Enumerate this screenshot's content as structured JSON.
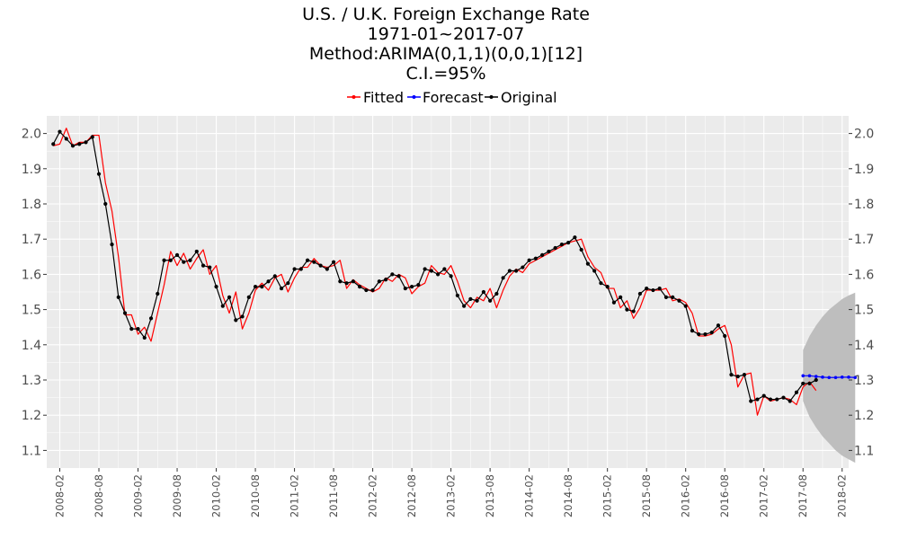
{
  "chart_data": {
    "type": "line",
    "title_lines": [
      "U.S. / U.K. Foreign Exchange Rate",
      "1971-01~2017-07",
      "Method:ARIMA(0,1,1)(0,0,1)[12]",
      "C.I.=95%"
    ],
    "legend": {
      "position": "top",
      "items": [
        {
          "label": "Fitted",
          "color": "#ff0000"
        },
        {
          "label": "Forecast",
          "color": "#0000ff"
        },
        {
          "label": "Original",
          "color": "#000000"
        }
      ]
    },
    "grid": true,
    "ylim": [
      1.05,
      2.05
    ],
    "yticks": [
      2.0,
      1.9,
      1.8,
      1.7,
      1.6,
      1.5,
      1.4,
      1.3,
      1.2,
      1.1
    ],
    "ytick_labels": [
      "2.0",
      "1.9",
      "1.8",
      "1.7",
      "1.6",
      "1.5",
      "1.4",
      "1.3",
      "1.2",
      "1.1"
    ],
    "xlim": [
      "2007-12",
      "2018-03"
    ],
    "xticks": [
      "2008-02",
      "2008-08",
      "2009-02",
      "2009-08",
      "2010-02",
      "2010-08",
      "2011-02",
      "2011-08",
      "2012-02",
      "2012-08",
      "2013-02",
      "2013-08",
      "2014-02",
      "2014-08",
      "2015-02",
      "2015-08",
      "2016-02",
      "2016-08",
      "2017-02",
      "2017-08",
      "2018-02"
    ],
    "original": {
      "start": "2008-01",
      "values": [
        1.97,
        2.005,
        1.985,
        1.965,
        1.97,
        1.975,
        1.99,
        1.885,
        1.8,
        1.685,
        1.535,
        1.49,
        1.445,
        1.445,
        1.42,
        1.475,
        1.545,
        1.64,
        1.64,
        1.655,
        1.635,
        1.64,
        1.665,
        1.625,
        1.62,
        1.565,
        1.51,
        1.535,
        1.47,
        1.48,
        1.535,
        1.565,
        1.565,
        1.58,
        1.595,
        1.56,
        1.575,
        1.615,
        1.615,
        1.64,
        1.635,
        1.625,
        1.615,
        1.635,
        1.58,
        1.575,
        1.58,
        1.565,
        1.555,
        1.555,
        1.58,
        1.585,
        1.6,
        1.595,
        1.56,
        1.565,
        1.57,
        1.615,
        1.61,
        1.6,
        1.615,
        1.595,
        1.54,
        1.51,
        1.53,
        1.525,
        1.55,
        1.525,
        1.545,
        1.59,
        1.61,
        1.61,
        1.62,
        1.64,
        1.645,
        1.655,
        1.665,
        1.675,
        1.685,
        1.69,
        1.705,
        1.67,
        1.63,
        1.61,
        1.575,
        1.565,
        1.52,
        1.535,
        1.5,
        1.495,
        1.545,
        1.56,
        1.555,
        1.56,
        1.535,
        1.535,
        1.525,
        1.51,
        1.44,
        1.43,
        1.43,
        1.435,
        1.455,
        1.425,
        1.315,
        1.31,
        1.315,
        1.24,
        1.245,
        1.255,
        1.245,
        1.245,
        1.25,
        1.24,
        1.265,
        1.29,
        1.29,
        1.3
      ]
    },
    "fitted": {
      "start": "2008-01",
      "values": [
        1.965,
        1.97,
        2.015,
        1.965,
        1.975,
        1.975,
        1.995,
        1.995,
        1.86,
        1.78,
        1.65,
        1.485,
        1.485,
        1.43,
        1.45,
        1.41,
        1.49,
        1.57,
        1.665,
        1.625,
        1.66,
        1.615,
        1.645,
        1.67,
        1.6,
        1.625,
        1.54,
        1.49,
        1.55,
        1.445,
        1.49,
        1.555,
        1.575,
        1.555,
        1.59,
        1.6,
        1.55,
        1.59,
        1.62,
        1.62,
        1.645,
        1.625,
        1.62,
        1.625,
        1.64,
        1.56,
        1.585,
        1.57,
        1.56,
        1.55,
        1.56,
        1.59,
        1.58,
        1.6,
        1.59,
        1.545,
        1.565,
        1.575,
        1.625,
        1.605,
        1.6,
        1.625,
        1.58,
        1.525,
        1.505,
        1.535,
        1.525,
        1.56,
        1.505,
        1.555,
        1.595,
        1.615,
        1.605,
        1.63,
        1.64,
        1.65,
        1.66,
        1.67,
        1.68,
        1.69,
        1.695,
        1.7,
        1.65,
        1.62,
        1.605,
        1.56,
        1.56,
        1.505,
        1.525,
        1.475,
        1.505,
        1.555,
        1.555,
        1.555,
        1.56,
        1.525,
        1.53,
        1.52,
        1.49,
        1.425,
        1.425,
        1.43,
        1.445,
        1.455,
        1.4,
        1.28,
        1.315,
        1.32,
        1.2,
        1.255,
        1.24,
        1.245,
        1.25,
        1.245,
        1.23,
        1.28,
        1.295,
        1.27
      ]
    },
    "forecast": {
      "start": "2017-08",
      "values": [
        1.312,
        1.312,
        1.31,
        1.308,
        1.307,
        1.307,
        1.308,
        1.308,
        1.307
      ],
      "lower": [
        1.24,
        1.195,
        1.165,
        1.14,
        1.12,
        1.1,
        1.085,
        1.075,
        1.065
      ],
      "upper": [
        1.385,
        1.425,
        1.455,
        1.48,
        1.5,
        1.515,
        1.53,
        1.54,
        1.548
      ]
    },
    "ci_color": "#bebebe"
  }
}
